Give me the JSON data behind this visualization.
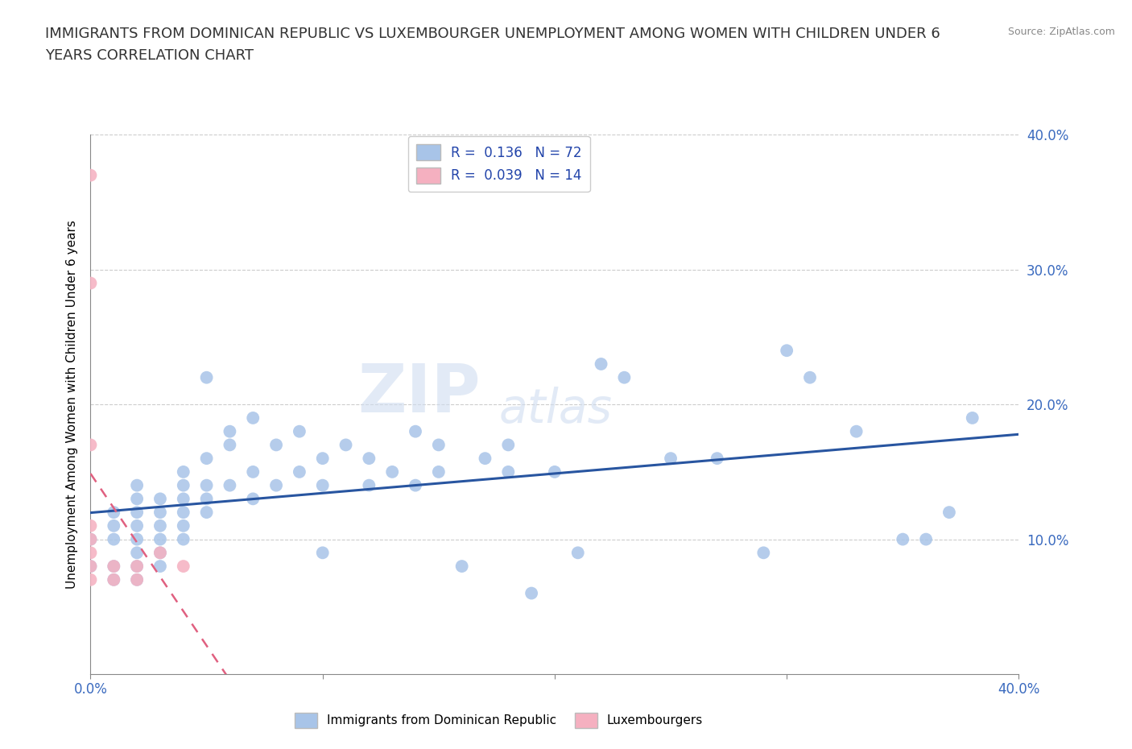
{
  "title_line1": "IMMIGRANTS FROM DOMINICAN REPUBLIC VS LUXEMBOURGER UNEMPLOYMENT AMONG WOMEN WITH CHILDREN UNDER 6",
  "title_line2": "YEARS CORRELATION CHART",
  "source": "Source: ZipAtlas.com",
  "ylabel": "Unemployment Among Women with Children Under 6 years",
  "xlim": [
    0.0,
    0.4
  ],
  "ylim": [
    0.0,
    0.4
  ],
  "xticks": [
    0.0,
    0.1,
    0.2,
    0.3,
    0.4
  ],
  "yticks": [
    0.1,
    0.2,
    0.3,
    0.4
  ],
  "blue_scatter_color": "#a8c4e8",
  "pink_scatter_color": "#f5b0c0",
  "blue_line_color": "#2855a0",
  "pink_line_color": "#e06080",
  "blue_dots": [
    [
      0.0,
      0.1
    ],
    [
      0.0,
      0.08
    ],
    [
      0.01,
      0.12
    ],
    [
      0.01,
      0.11
    ],
    [
      0.01,
      0.1
    ],
    [
      0.01,
      0.08
    ],
    [
      0.01,
      0.07
    ],
    [
      0.02,
      0.14
    ],
    [
      0.02,
      0.13
    ],
    [
      0.02,
      0.12
    ],
    [
      0.02,
      0.11
    ],
    [
      0.02,
      0.1
    ],
    [
      0.02,
      0.09
    ],
    [
      0.02,
      0.08
    ],
    [
      0.02,
      0.07
    ],
    [
      0.03,
      0.13
    ],
    [
      0.03,
      0.12
    ],
    [
      0.03,
      0.11
    ],
    [
      0.03,
      0.1
    ],
    [
      0.03,
      0.09
    ],
    [
      0.03,
      0.08
    ],
    [
      0.04,
      0.15
    ],
    [
      0.04,
      0.14
    ],
    [
      0.04,
      0.13
    ],
    [
      0.04,
      0.12
    ],
    [
      0.04,
      0.11
    ],
    [
      0.04,
      0.1
    ],
    [
      0.05,
      0.22
    ],
    [
      0.05,
      0.16
    ],
    [
      0.05,
      0.14
    ],
    [
      0.05,
      0.13
    ],
    [
      0.05,
      0.12
    ],
    [
      0.06,
      0.18
    ],
    [
      0.06,
      0.17
    ],
    [
      0.06,
      0.14
    ],
    [
      0.07,
      0.19
    ],
    [
      0.07,
      0.15
    ],
    [
      0.07,
      0.13
    ],
    [
      0.08,
      0.17
    ],
    [
      0.08,
      0.14
    ],
    [
      0.09,
      0.18
    ],
    [
      0.09,
      0.15
    ],
    [
      0.1,
      0.16
    ],
    [
      0.1,
      0.14
    ],
    [
      0.1,
      0.09
    ],
    [
      0.11,
      0.17
    ],
    [
      0.12,
      0.16
    ],
    [
      0.12,
      0.14
    ],
    [
      0.13,
      0.15
    ],
    [
      0.14,
      0.18
    ],
    [
      0.14,
      0.14
    ],
    [
      0.15,
      0.17
    ],
    [
      0.15,
      0.15
    ],
    [
      0.16,
      0.08
    ],
    [
      0.17,
      0.16
    ],
    [
      0.18,
      0.17
    ],
    [
      0.18,
      0.15
    ],
    [
      0.19,
      0.06
    ],
    [
      0.2,
      0.15
    ],
    [
      0.21,
      0.09
    ],
    [
      0.22,
      0.23
    ],
    [
      0.23,
      0.22
    ],
    [
      0.25,
      0.16
    ],
    [
      0.27,
      0.16
    ],
    [
      0.29,
      0.09
    ],
    [
      0.3,
      0.24
    ],
    [
      0.31,
      0.22
    ],
    [
      0.33,
      0.18
    ],
    [
      0.35,
      0.1
    ],
    [
      0.36,
      0.1
    ],
    [
      0.37,
      0.12
    ],
    [
      0.38,
      0.19
    ]
  ],
  "pink_dots": [
    [
      0.0,
      0.37
    ],
    [
      0.0,
      0.29
    ],
    [
      0.0,
      0.17
    ],
    [
      0.0,
      0.11
    ],
    [
      0.0,
      0.1
    ],
    [
      0.0,
      0.09
    ],
    [
      0.0,
      0.08
    ],
    [
      0.0,
      0.07
    ],
    [
      0.01,
      0.08
    ],
    [
      0.01,
      0.07
    ],
    [
      0.02,
      0.08
    ],
    [
      0.02,
      0.07
    ],
    [
      0.03,
      0.09
    ],
    [
      0.04,
      0.08
    ]
  ],
  "watermark_zip": "ZIP",
  "watermark_atlas": "atlas",
  "title_fontsize": 13,
  "axis_label_fontsize": 11,
  "tick_fontsize": 12,
  "tick_color": "#3a6abf",
  "grid_color": "#cccccc",
  "scatter_size": 130
}
